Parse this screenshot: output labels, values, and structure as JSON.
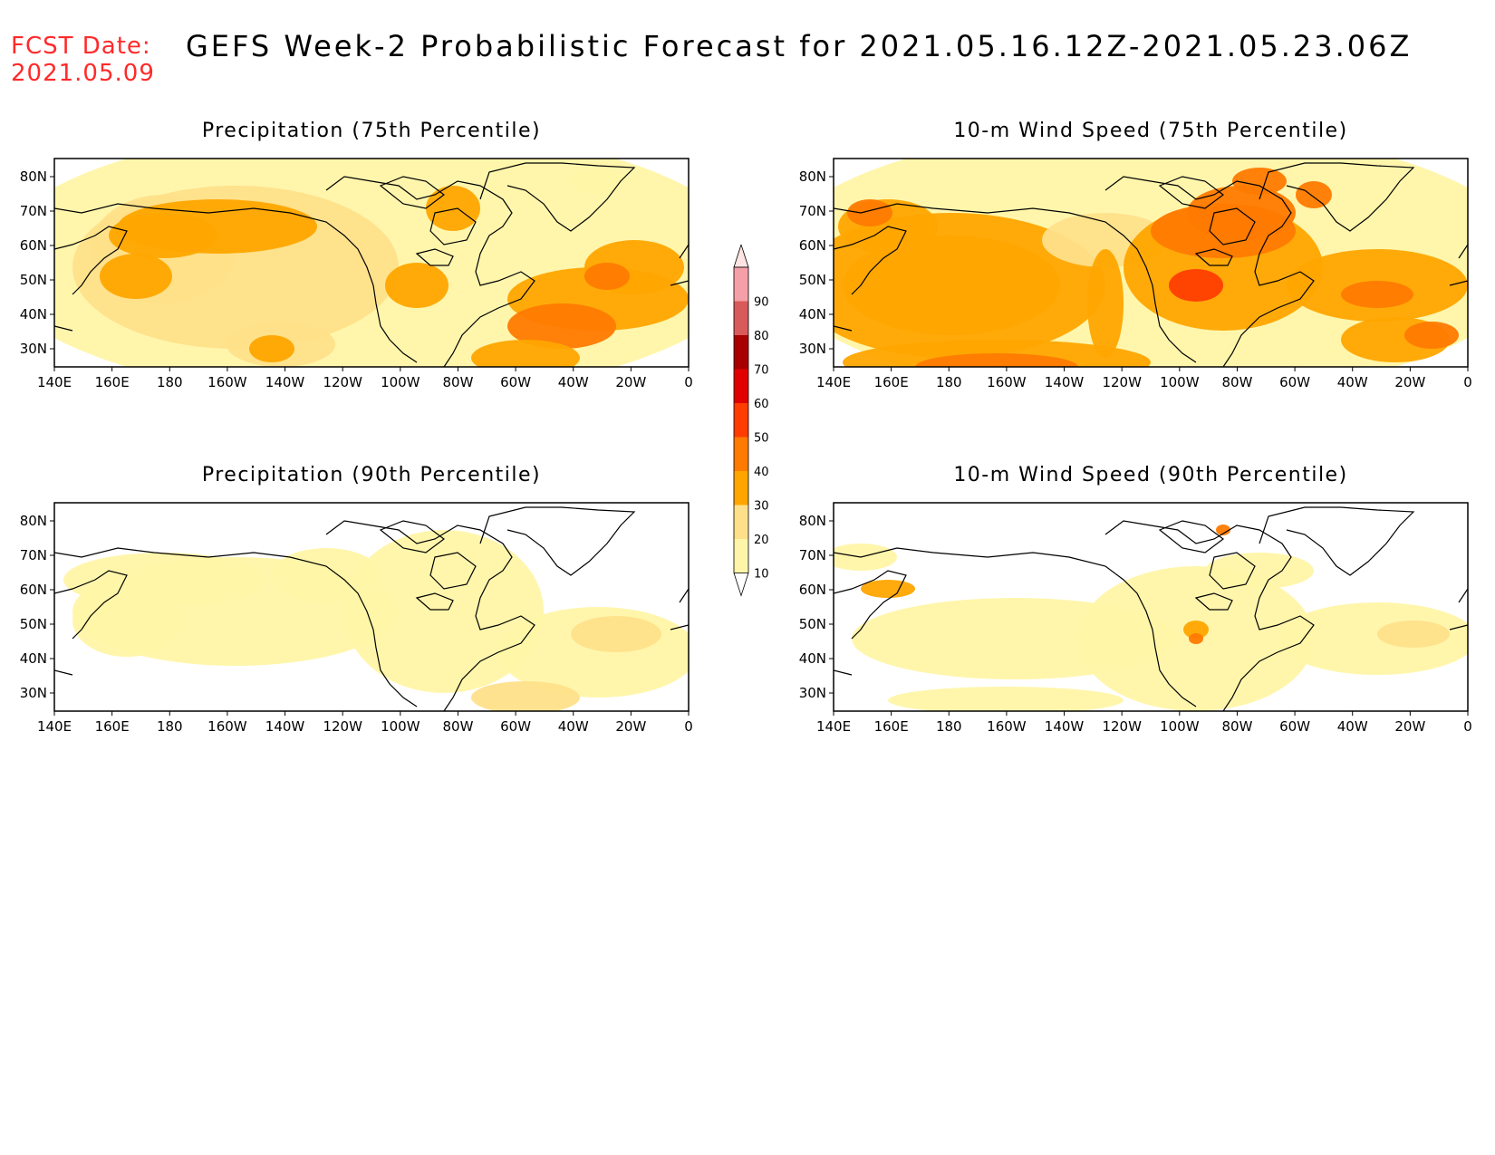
{
  "header": {
    "fcst_label": "FCST Date:",
    "fcst_date": "2021.05.09",
    "title": "GEFS Week-2 Probabilistic Forecast for 2021.05.16.12Z-2021.05.23.06Z"
  },
  "axes": {
    "lon_ticks": [
      "140E",
      "160E",
      "180",
      "160W",
      "140W",
      "120W",
      "100W",
      "80W",
      "60W",
      "40W",
      "20W",
      "0"
    ],
    "lat_ticks": [
      "80N",
      "70N",
      "60N",
      "50N",
      "40N",
      "30N"
    ]
  },
  "colorbar": {
    "levels": [
      "10",
      "20",
      "30",
      "40",
      "50",
      "60",
      "70",
      "80",
      "90"
    ],
    "colors": [
      "#fff5a8",
      "#ffe08a",
      "#ffa500",
      "#ff7a00",
      "#ff3d00",
      "#e00000",
      "#a80000",
      "#d85a5a",
      "#f5a0a8"
    ]
  },
  "panels": [
    {
      "id": "precip75",
      "title": "Precipitation (75th Percentile)"
    },
    {
      "id": "wind75",
      "title": "10-m Wind Speed (75th Percentile)"
    },
    {
      "id": "precip90",
      "title": "Precipitation (90th Percentile)"
    },
    {
      "id": "wind90",
      "title": "10-m Wind Speed (90th Percentile)"
    }
  ]
}
